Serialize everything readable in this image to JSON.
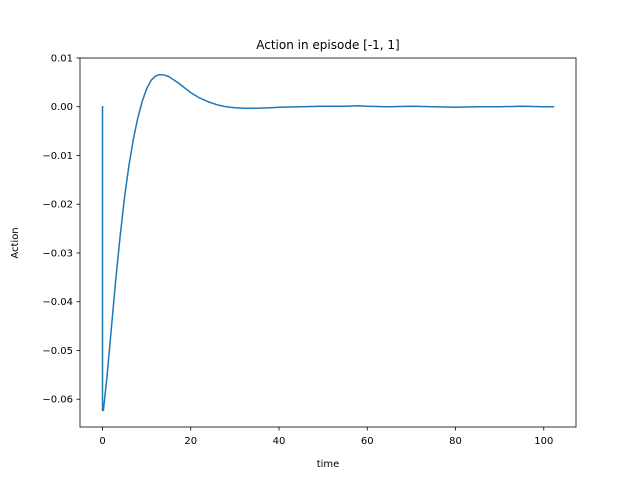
{
  "chart_data": {
    "type": "line",
    "title": "Action in episode [-1, 1]",
    "xlabel": "time",
    "ylabel": "Action",
    "xlim": [
      -5.1,
      107.3
    ],
    "ylim": [
      -0.0657,
      0.01
    ],
    "xticks": [
      0,
      20,
      40,
      60,
      80,
      100
    ],
    "xtick_labels": [
      "0",
      "20",
      "40",
      "60",
      "80",
      "100"
    ],
    "yticks": [
      0.01,
      0.0,
      -0.01,
      -0.02,
      -0.03,
      -0.04,
      -0.05,
      -0.06
    ],
    "ytick_labels": [
      "0.01",
      "0.00",
      "−0.01",
      "−0.02",
      "−0.03",
      "−0.04",
      "−0.05",
      "−0.06"
    ],
    "grid": false,
    "line_color": "#1f77b4",
    "series": [
      {
        "x": [
          0,
          0,
          0.2,
          1,
          2,
          3,
          4,
          5,
          6,
          7,
          8,
          9,
          10,
          11,
          12,
          13,
          14,
          15,
          16,
          17,
          18,
          19,
          20,
          22,
          24,
          26,
          28,
          30,
          32,
          35,
          38,
          40,
          45,
          50,
          55,
          58,
          60,
          65,
          70,
          75,
          80,
          85,
          90,
          95,
          100,
          102.2
        ],
        "y": [
          0.0,
          -0.0623,
          -0.0623,
          -0.0555,
          -0.0455,
          -0.0355,
          -0.0265,
          -0.0185,
          -0.012,
          -0.0066,
          -0.0023,
          0.0011,
          0.0037,
          0.0054,
          0.0063,
          0.0066,
          0.0065,
          0.0062,
          0.0056,
          0.005,
          0.0043,
          0.0036,
          0.0029,
          0.0018,
          0.001,
          0.0004,
          0.0,
          -0.0002,
          -0.0003,
          -0.0003,
          -0.0002,
          -0.0001,
          0.0,
          0.0001,
          0.0001,
          0.0002,
          0.0001,
          0.0,
          0.0001,
          0.0,
          -0.0001,
          0.0,
          0.0,
          0.0001,
          0.0,
          0.0
        ]
      }
    ]
  }
}
